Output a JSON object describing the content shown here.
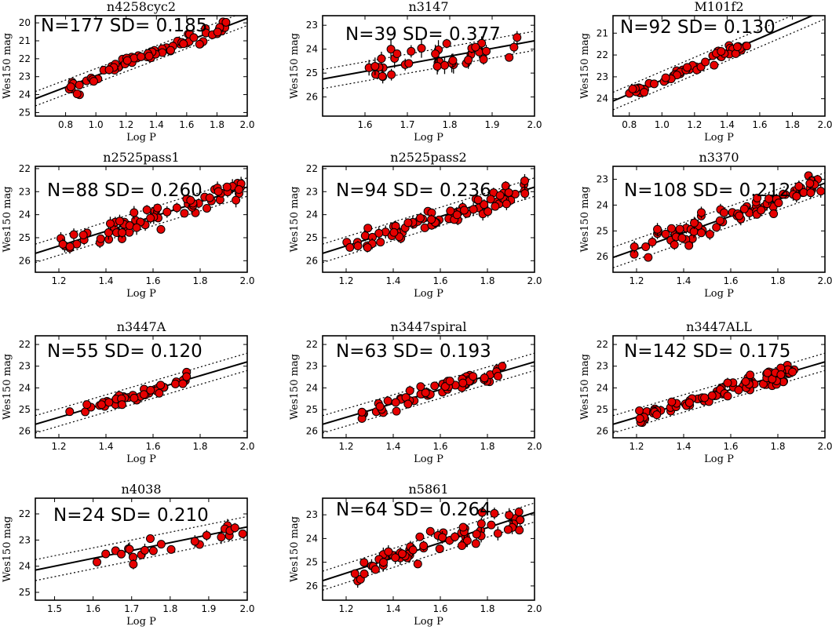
{
  "chart_data": [
    {
      "type": "scatter",
      "title": "n4258cyc2",
      "annotation": "N=177 SD= 0.185",
      "xlabel": "Log P",
      "ylabel": "Wes150 mag",
      "xlim": [
        0.6,
        2.0
      ],
      "ylim": [
        25.2,
        19.6
      ],
      "xticks": [
        "0.8",
        "1.0",
        "1.2",
        "1.4",
        "1.6",
        "1.8",
        "2.0"
      ],
      "yticks": [
        "20",
        "21",
        "22",
        "23",
        "24",
        "25"
      ],
      "fit": {
        "intercept": 26.15,
        "slope": -3.2,
        "offset": 0.4
      },
      "seed": 11,
      "n": 70,
      "scatter": 0.2,
      "x_range": [
        0.78,
        1.87
      ]
    },
    {
      "type": "scatter",
      "title": "n3147",
      "annotation": "N=39 SD= 0.377",
      "xlabel": "Log P",
      "ylabel": "Wes150 mag",
      "xlim": [
        1.5,
        2.0
      ],
      "ylim": [
        26.8,
        22.6
      ],
      "xticks": [
        "1.6",
        "1.7",
        "1.8",
        "1.9",
        "2.0"
      ],
      "yticks": [
        "23",
        "24",
        "25",
        "26"
      ],
      "fit": {
        "intercept": 30.05,
        "slope": -3.2,
        "offset": 0.4
      },
      "seed": 23,
      "n": 39,
      "scatter": 0.38,
      "x_range": [
        1.6,
        1.96
      ]
    },
    {
      "type": "scatter",
      "title": "M101f2",
      "annotation": "N=92 SD= 0.130",
      "xlabel": "Log P",
      "ylabel": "Wes150 mag",
      "xlim": [
        0.7,
        2.0
      ],
      "ylim": [
        24.8,
        20.2
      ],
      "xticks": [
        "0.8",
        "1.0",
        "1.2",
        "1.4",
        "1.6",
        "1.8",
        "2.0"
      ],
      "yticks": [
        "21",
        "22",
        "23",
        "24"
      ],
      "fit": {
        "intercept": 26.35,
        "slope": -3.2,
        "offset": 0.4
      },
      "seed": 37,
      "n": 55,
      "scatter": 0.13,
      "x_range": [
        0.78,
        1.58
      ]
    },
    {
      "type": "scatter",
      "title": "n2525pass1",
      "annotation": "N=88 SD= 0.260",
      "xlabel": "Log P",
      "ylabel": "Wes150 mag",
      "xlim": [
        1.1,
        2.0
      ],
      "ylim": [
        26.5,
        21.9
      ],
      "xticks": [
        "1.2",
        "1.4",
        "1.6",
        "1.8",
        "2.0"
      ],
      "yticks": [
        "22",
        "23",
        "24",
        "25",
        "26"
      ],
      "fit": {
        "intercept": 29.2,
        "slope": -3.2,
        "offset": 0.4
      },
      "seed": 41,
      "n": 70,
      "scatter": 0.26,
      "x_range": [
        1.19,
        1.98
      ]
    },
    {
      "type": "scatter",
      "title": "n2525pass2",
      "annotation": "N=94 SD= 0.236",
      "xlabel": "Log P",
      "ylabel": "Wes150 mag",
      "xlim": [
        1.1,
        2.0
      ],
      "ylim": [
        26.5,
        21.9
      ],
      "xticks": [
        "1.2",
        "1.4",
        "1.6",
        "1.8",
        "2.0"
      ],
      "yticks": [
        "22",
        "23",
        "24",
        "25",
        "26"
      ],
      "fit": {
        "intercept": 29.2,
        "slope": -3.2,
        "offset": 0.4
      },
      "seed": 53,
      "n": 75,
      "scatter": 0.24,
      "x_range": [
        1.19,
        1.96
      ]
    },
    {
      "type": "scatter",
      "title": "n3370",
      "annotation": "N=108 SD= 0.212",
      "xlabel": "Log P",
      "ylabel": "Wes150 mag",
      "xlim": [
        1.1,
        2.0
      ],
      "ylim": [
        26.6,
        22.5
      ],
      "xticks": [
        "1.2",
        "1.4",
        "1.6",
        "1.8",
        "2.0"
      ],
      "yticks": [
        "23",
        "24",
        "25",
        "26"
      ],
      "fit": {
        "intercept": 29.55,
        "slope": -3.2,
        "offset": 0.4
      },
      "seed": 67,
      "n": 80,
      "scatter": 0.21,
      "x_range": [
        1.19,
        1.99
      ]
    },
    {
      "type": "scatter",
      "title": "n3447A",
      "annotation": "N=55 SD= 0.120",
      "xlabel": "Log P",
      "ylabel": "Wes150 mag",
      "xlim": [
        1.1,
        2.0
      ],
      "ylim": [
        26.3,
        21.6
      ],
      "xticks": [
        "1.2",
        "1.4",
        "1.6",
        "1.8",
        "2.0"
      ],
      "yticks": [
        "22",
        "23",
        "24",
        "25",
        "26"
      ],
      "fit": {
        "intercept": 29.2,
        "slope": -3.2,
        "offset": 0.4
      },
      "seed": 71,
      "n": 50,
      "scatter": 0.12,
      "x_range": [
        1.24,
        1.75
      ]
    },
    {
      "type": "scatter",
      "title": "n3447spiral",
      "annotation": "N=63 SD= 0.193",
      "xlabel": "Log P",
      "ylabel": "Wes150 mag",
      "xlim": [
        1.1,
        2.0
      ],
      "ylim": [
        26.3,
        21.6
      ],
      "xticks": [
        "1.2",
        "1.4",
        "1.6",
        "1.8",
        "2.0"
      ],
      "yticks": [
        "22",
        "23",
        "24",
        "25",
        "26"
      ],
      "fit": {
        "intercept": 29.2,
        "slope": -3.2,
        "offset": 0.4
      },
      "seed": 83,
      "n": 60,
      "scatter": 0.19,
      "x_range": [
        1.25,
        1.87
      ]
    },
    {
      "type": "scatter",
      "title": "n3447ALL",
      "annotation": "N=142 SD= 0.175",
      "xlabel": "Log P",
      "ylabel": "Wes150 mag",
      "xlim": [
        1.1,
        2.0
      ],
      "ylim": [
        26.3,
        21.6
      ],
      "xticks": [
        "1.2",
        "1.4",
        "1.6",
        "1.8",
        "2.0"
      ],
      "yticks": [
        "22",
        "23",
        "24",
        "25",
        "26"
      ],
      "fit": {
        "intercept": 29.2,
        "slope": -3.2,
        "offset": 0.4
      },
      "seed": 97,
      "n": 95,
      "scatter": 0.17,
      "x_range": [
        1.2,
        1.87
      ]
    },
    {
      "type": "scatter",
      "title": "n4038",
      "annotation": "N=24 SD= 0.210",
      "xlabel": "Log P",
      "ylabel": "Wes150 mag",
      "xlim": [
        1.45,
        2.0
      ],
      "ylim": [
        25.3,
        21.4
      ],
      "xticks": [
        "1.5",
        "1.6",
        "1.7",
        "1.8",
        "1.9",
        "2.0"
      ],
      "yticks": [
        "22",
        "23",
        "24",
        "25"
      ],
      "fit": {
        "intercept": 28.5,
        "slope": -3.0,
        "offset": 0.4
      },
      "seed": 101,
      "n": 24,
      "scatter": 0.21,
      "x_range": [
        1.56,
        1.99
      ]
    },
    {
      "type": "scatter",
      "title": "n5861",
      "annotation": "N=64 SD= 0.264",
      "xlabel": "Log P",
      "ylabel": "Wes150 mag",
      "xlim": [
        1.1,
        2.0
      ],
      "ylim": [
        26.6,
        22.3
      ],
      "xticks": [
        "1.2",
        "1.4",
        "1.6",
        "1.8",
        "2.0"
      ],
      "yticks": [
        "23",
        "24",
        "25",
        "26"
      ],
      "fit": {
        "intercept": 29.3,
        "slope": -3.2,
        "offset": 0.4
      },
      "seed": 113,
      "n": 64,
      "scatter": 0.26,
      "x_range": [
        1.23,
        1.94
      ]
    }
  ],
  "style": {
    "point_fill": "#e60000",
    "point_stroke": "#000000",
    "line_color": "#000000"
  }
}
